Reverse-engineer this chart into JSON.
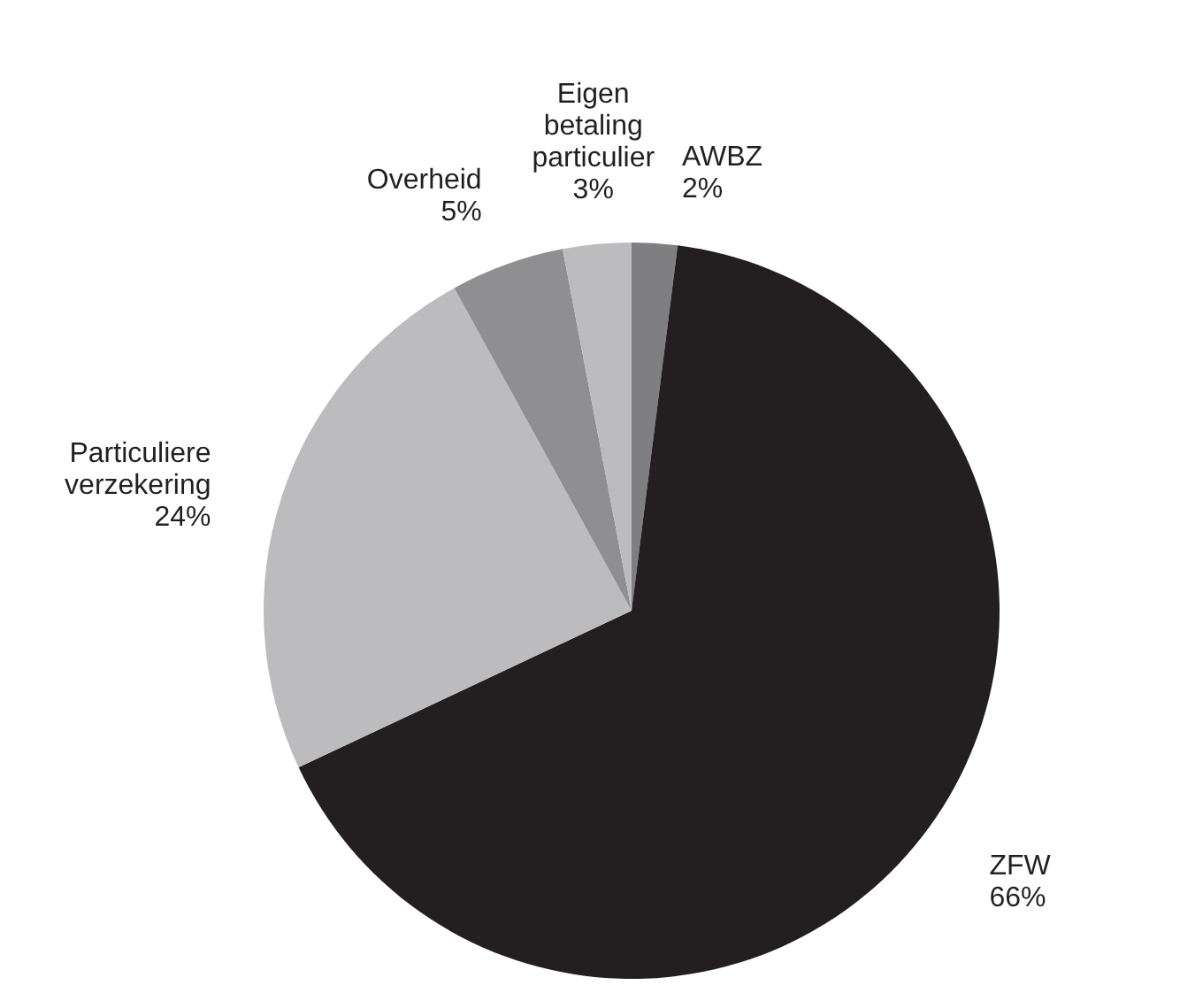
{
  "chart_data": {
    "type": "pie",
    "categories": [
      "AWBZ",
      "ZFW",
      "Particuliere verzekering",
      "Overheid",
      "Eigen betaling particulier"
    ],
    "values": [
      2,
      66,
      24,
      5,
      3
    ],
    "colors": [
      "#7f7f81",
      "#231f20",
      "#bcbcbe",
      "#8f8f91",
      "#bcbcbe"
    ],
    "value_labels": [
      "2%",
      "66%",
      "24%",
      "5%",
      "3%"
    ]
  }
}
